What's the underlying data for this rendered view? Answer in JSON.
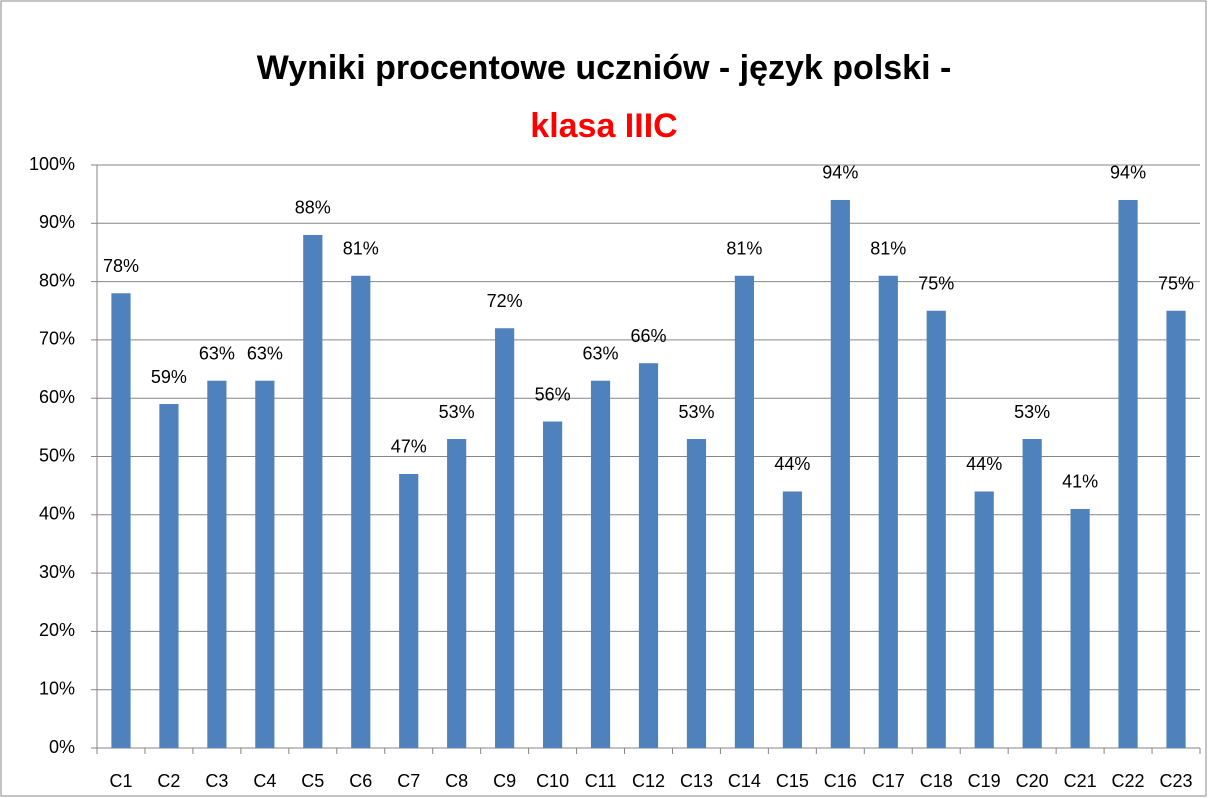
{
  "chart_data": {
    "type": "bar",
    "title_lines": [
      {
        "text": "Wyniki procentowe uczniów - język polski -",
        "color": "#000000"
      },
      {
        "text": "klasa IIIC",
        "color": "#ff0000"
      }
    ],
    "categories": [
      "C1",
      "C2",
      "C3",
      "C4",
      "C5",
      "C6",
      "C7",
      "C8",
      "C9",
      "C10",
      "C11",
      "C12",
      "C13",
      "C14",
      "C15",
      "C16",
      "C17",
      "C18",
      "C19",
      "C20",
      "C21",
      "C22",
      "C23"
    ],
    "values": [
      78,
      59,
      63,
      63,
      88,
      81,
      47,
      53,
      72,
      56,
      63,
      66,
      53,
      81,
      44,
      94,
      81,
      75,
      44,
      53,
      41,
      94,
      75
    ],
    "value_labels": [
      "78%",
      "59%",
      "63%",
      "63%",
      "88%",
      "81%",
      "47%",
      "53%",
      "72%",
      "56%",
      "63%",
      "66%",
      "53%",
      "81%",
      "44%",
      "94%",
      "81%",
      "75%",
      "44%",
      "53%",
      "41%",
      "94%",
      "75%"
    ],
    "color": "#4f81bd",
    "ylim": [
      0,
      100
    ],
    "yticks": [
      {
        "value": 0,
        "label": "0%"
      },
      {
        "value": 10,
        "label": "10%"
      },
      {
        "value": 20,
        "label": "20%"
      },
      {
        "value": 30,
        "label": "30%"
      },
      {
        "value": 40,
        "label": "40%"
      },
      {
        "value": 50,
        "label": "50%"
      },
      {
        "value": 60,
        "label": "60%"
      },
      {
        "value": 70,
        "label": "70%"
      },
      {
        "value": 80,
        "label": "80%"
      },
      {
        "value": 90,
        "label": "90%"
      },
      {
        "value": 100,
        "label": "100%"
      }
    ],
    "grid": true
  }
}
